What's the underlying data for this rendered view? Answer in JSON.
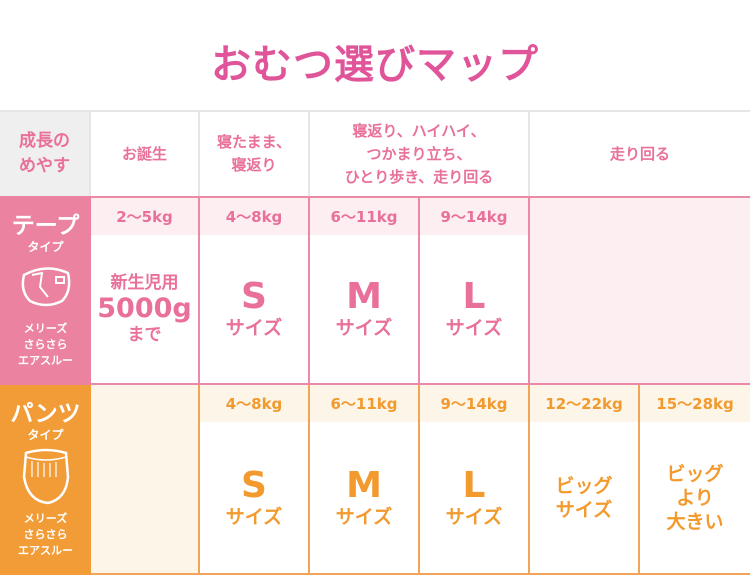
{
  "title": "おむつ選びマップ",
  "colors": {
    "pink": "#e8709a",
    "pink_label_bg": "#eb829f",
    "orange": "#f29a2e",
    "orange_label_bg": "#f29c38"
  },
  "header": {
    "label_line1": "成長の",
    "label_line2": "めやす",
    "stages": [
      {
        "lines": [
          "お誕生"
        ]
      },
      {
        "lines": [
          "寝たまま、",
          "寝返り"
        ]
      },
      {
        "lines": [
          "寝返り、ハイハイ、",
          "つかまり立ち、",
          "ひとり歩き、走り回る"
        ]
      },
      {
        "lines": [
          "走り回る"
        ]
      }
    ]
  },
  "tape": {
    "name": "テープ",
    "type": "タイプ",
    "icon": "tape-diaper-icon",
    "brand": [
      "メリーズ",
      "さらさら",
      "エアスルー"
    ],
    "cells": [
      {
        "weight": "2〜5kg",
        "lines": [
          "新生児用",
          "5000g",
          "まで"
        ]
      },
      {
        "weight": "4〜8kg",
        "size": "S",
        "suffix": "サイズ"
      },
      {
        "weight": "6〜11kg",
        "size": "M",
        "suffix": "サイズ"
      },
      {
        "weight": "9〜14kg",
        "size": "L",
        "suffix": "サイズ"
      }
    ]
  },
  "pants": {
    "name": "パンツ",
    "type": "タイプ",
    "icon": "pants-diaper-icon",
    "brand": [
      "メリーズ",
      "さらさら",
      "エアスルー"
    ],
    "cells": [
      {
        "weight": "4〜8kg",
        "size": "S",
        "suffix": "サイズ"
      },
      {
        "weight": "6〜11kg",
        "size": "M",
        "suffix": "サイズ"
      },
      {
        "weight": "9〜14kg",
        "size": "L",
        "suffix": "サイズ"
      },
      {
        "weight": "12〜22kg",
        "lines": [
          "ビッグ",
          "サイズ"
        ]
      },
      {
        "weight": "15〜28kg",
        "lines": [
          "ビッグ",
          "より",
          "大きい"
        ]
      }
    ]
  }
}
